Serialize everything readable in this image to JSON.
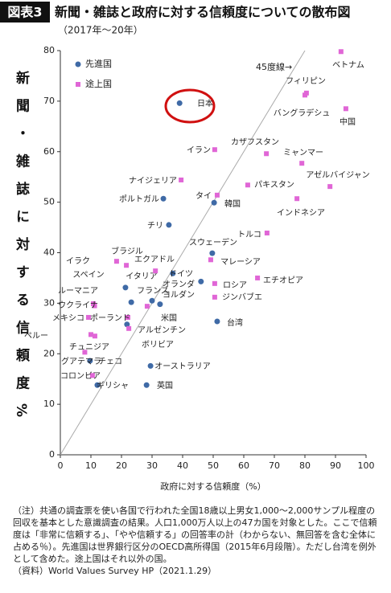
{
  "chart_data": {
    "type": "scatter",
    "figure_label": "図表3",
    "title": "新聞・雑誌と政府に対する信頼度についての散布図",
    "subtitle": "（2017年～20年）",
    "x_label": "政府に対する信頼度（%）",
    "y_label": "新聞・雑誌に対する信頼度%",
    "annotation": "45度線→",
    "xlim": [
      0,
      100
    ],
    "ylim": [
      0,
      80
    ],
    "xticks": [
      0,
      10,
      20,
      30,
      40,
      50,
      60,
      70,
      80,
      90,
      100
    ],
    "yticks": [
      0,
      10,
      20,
      30,
      40,
      50,
      60,
      70,
      80
    ],
    "grid": false,
    "legend": "top-left",
    "series": [
      {
        "name": "先進国",
        "color": "#3f6aa6",
        "marker": "circle",
        "labels": [
          "日本",
          "ポルトガル",
          "韓国",
          "チリ",
          "スウェーデン",
          "スペイン",
          "イタリア",
          "ドイツ",
          "オランダ",
          "フランス",
          "米国",
          "台湾",
          "アルゼンチン",
          "チェコ",
          "オーストラリア",
          "ギリシャ",
          "英国"
        ],
        "x": [
          39,
          33.7,
          50.3,
          35.5,
          49.7,
          21.3,
          23.2,
          36.8,
          46,
          30,
          32.6,
          51.3,
          21.8,
          9.7,
          29.5,
          12.1,
          28.2
        ],
        "values": [
          69.6,
          50.7,
          49.9,
          45.5,
          39.9,
          33.1,
          30.2,
          35.9,
          34.3,
          30.5,
          29.8,
          26.4,
          25.8,
          18.6,
          17.6,
          13.8,
          13.8
        ]
      },
      {
        "name": "途上国",
        "color": "#e066d6",
        "marker": "square",
        "labels": [
          "ベトナム",
          "フィリピン",
          "バングラデシュ",
          "中国",
          "イラン",
          "カザフスタン",
          "ミャンマー",
          "ナイジェリア",
          "アゼルバイジャン",
          "パキスタン",
          "タイ",
          "インドネシア",
          "トルコ",
          "ブラジル",
          "イラク",
          "エクアドル",
          "マレーシア",
          "エチオピア",
          "ロシア",
          "ヨルダン",
          "ジンバブエ",
          "ルーマニア",
          "ウクライナ",
          "メキシコ",
          "ポーランド",
          "ボリビア",
          "ペルー",
          "チュニジア",
          "グアテマラ",
          "コロンビア"
        ],
        "x": [
          91.8,
          80.5,
          80,
          93.4,
          50.5,
          67.4,
          79,
          39.5,
          88.2,
          61.3,
          51.3,
          77.4,
          67.6,
          21.6,
          18.4,
          31.1,
          49.2,
          64.5,
          50.5,
          28.4,
          50.5,
          10.8,
          11.2,
          9.2,
          22.1,
          22.4,
          10,
          11.3,
          8,
          10.5
        ],
        "values": [
          79.8,
          71.6,
          71.2,
          68.5,
          60.4,
          59.6,
          57.7,
          54.4,
          53.1,
          53.4,
          51.4,
          50.7,
          43.9,
          37.5,
          38.3,
          36.4,
          38.6,
          35,
          33.9,
          29.4,
          31.2,
          29.9,
          29.5,
          27.2,
          27.2,
          25,
          23.8,
          23.5,
          20.3,
          15.7
        ]
      }
    ]
  },
  "notes": {
    "note": "（注）共通の調査票を使い各国で行われた全国18歳以上男女1,000～2,000サンプル程度の回収を基本とした意識調査の結果。人口1,000万人以上の47カ国を対象とした。ここで信頼度は「非常に信頼する」、「やや信頼する」の回答率の計（わからない、無回答を含む全体に占める％）。先進国は世界銀行区分のOECD高所得国（2015年6月段階）。ただし台湾を例外として含めた。途上国はそれ以外の国。",
    "source": "（資料）World Values Survey HP（2021.1.29）"
  }
}
